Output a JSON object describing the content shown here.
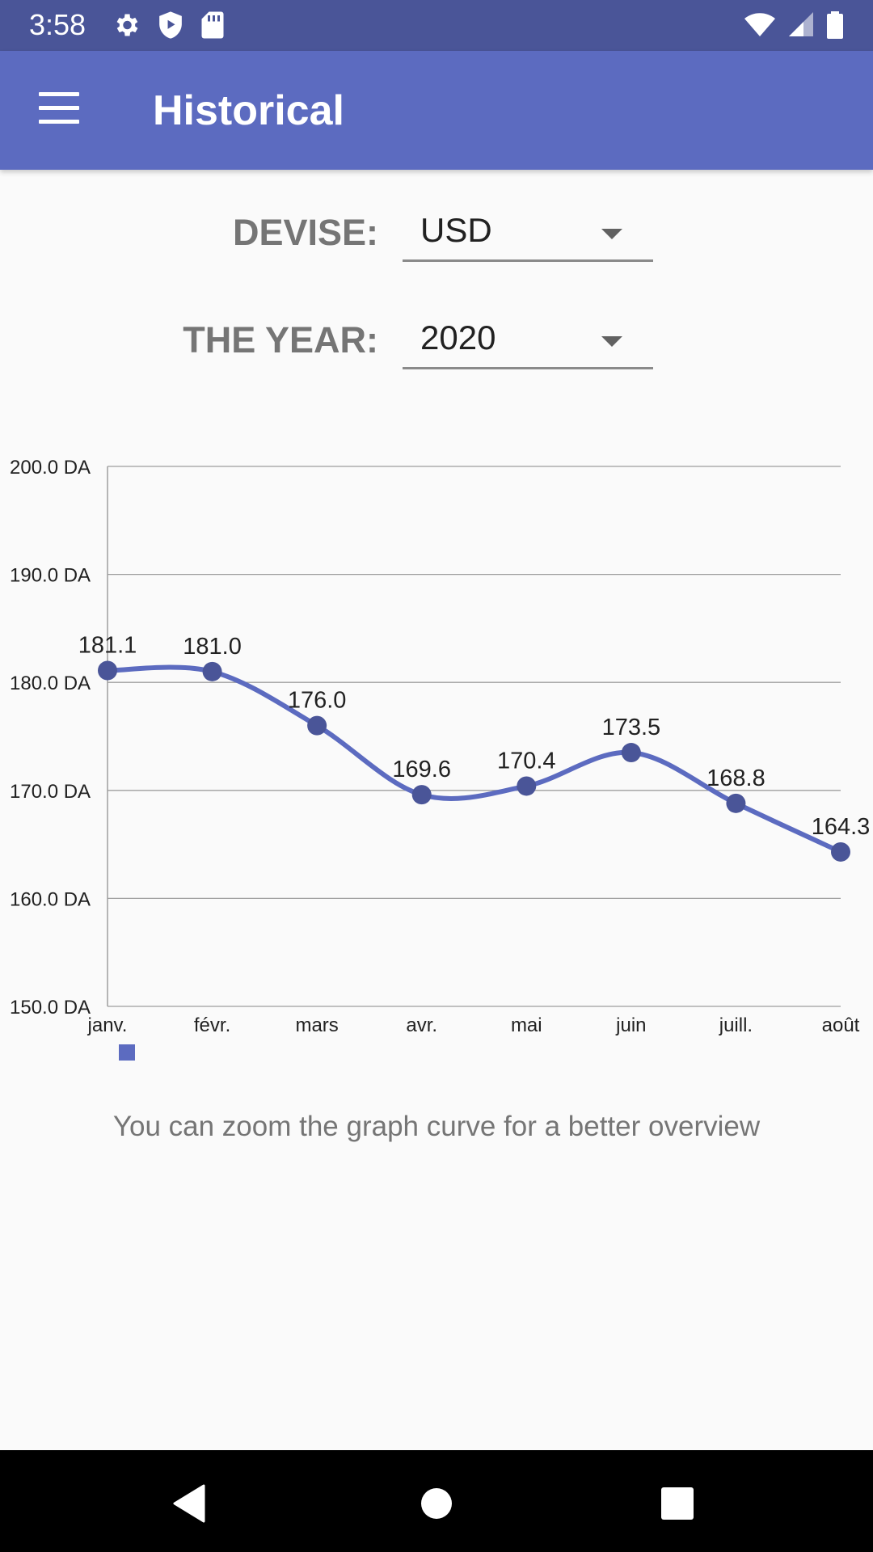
{
  "status_bar": {
    "time": "3:58",
    "left_icons": [
      "settings-icon",
      "play-protect-icon",
      "sd-card-icon"
    ],
    "right_icons": [
      "wifi-icon",
      "signal-icon",
      "battery-icon"
    ]
  },
  "app_bar": {
    "title": "Historical",
    "menu_icon": "menu-icon",
    "color": "#5c6bc0"
  },
  "form": {
    "currency": {
      "label": "DEVISE:",
      "value": "USD"
    },
    "year": {
      "label": "THE YEAR:",
      "value": "2020"
    }
  },
  "chart_data": {
    "type": "line",
    "categories": [
      "janv.",
      "févr.",
      "mars",
      "avr.",
      "mai",
      "juin",
      "juill.",
      "août"
    ],
    "series": [
      {
        "values": [
          181.1,
          181.0,
          176.0,
          169.6,
          170.4,
          173.5,
          168.8,
          164.3
        ],
        "color": "#5c6bc0"
      }
    ],
    "data_labels": [
      "181.1",
      "181.0",
      "176.0",
      "169.6",
      "170.4",
      "173.5",
      "168.8",
      "164.3"
    ],
    "ylim": [
      150,
      200
    ],
    "yticks": [
      "150.0 DA",
      "160.0 DA",
      "170.0 DA",
      "180.0 DA",
      "190.0 DA",
      "200.0 DA"
    ],
    "grid": true,
    "legend": "bottom-left",
    "smooth": true
  },
  "hint": "You can zoom the graph curve for a better overview",
  "nav_bar": {
    "icons": [
      "back-icon",
      "home-icon",
      "recents-icon"
    ]
  }
}
